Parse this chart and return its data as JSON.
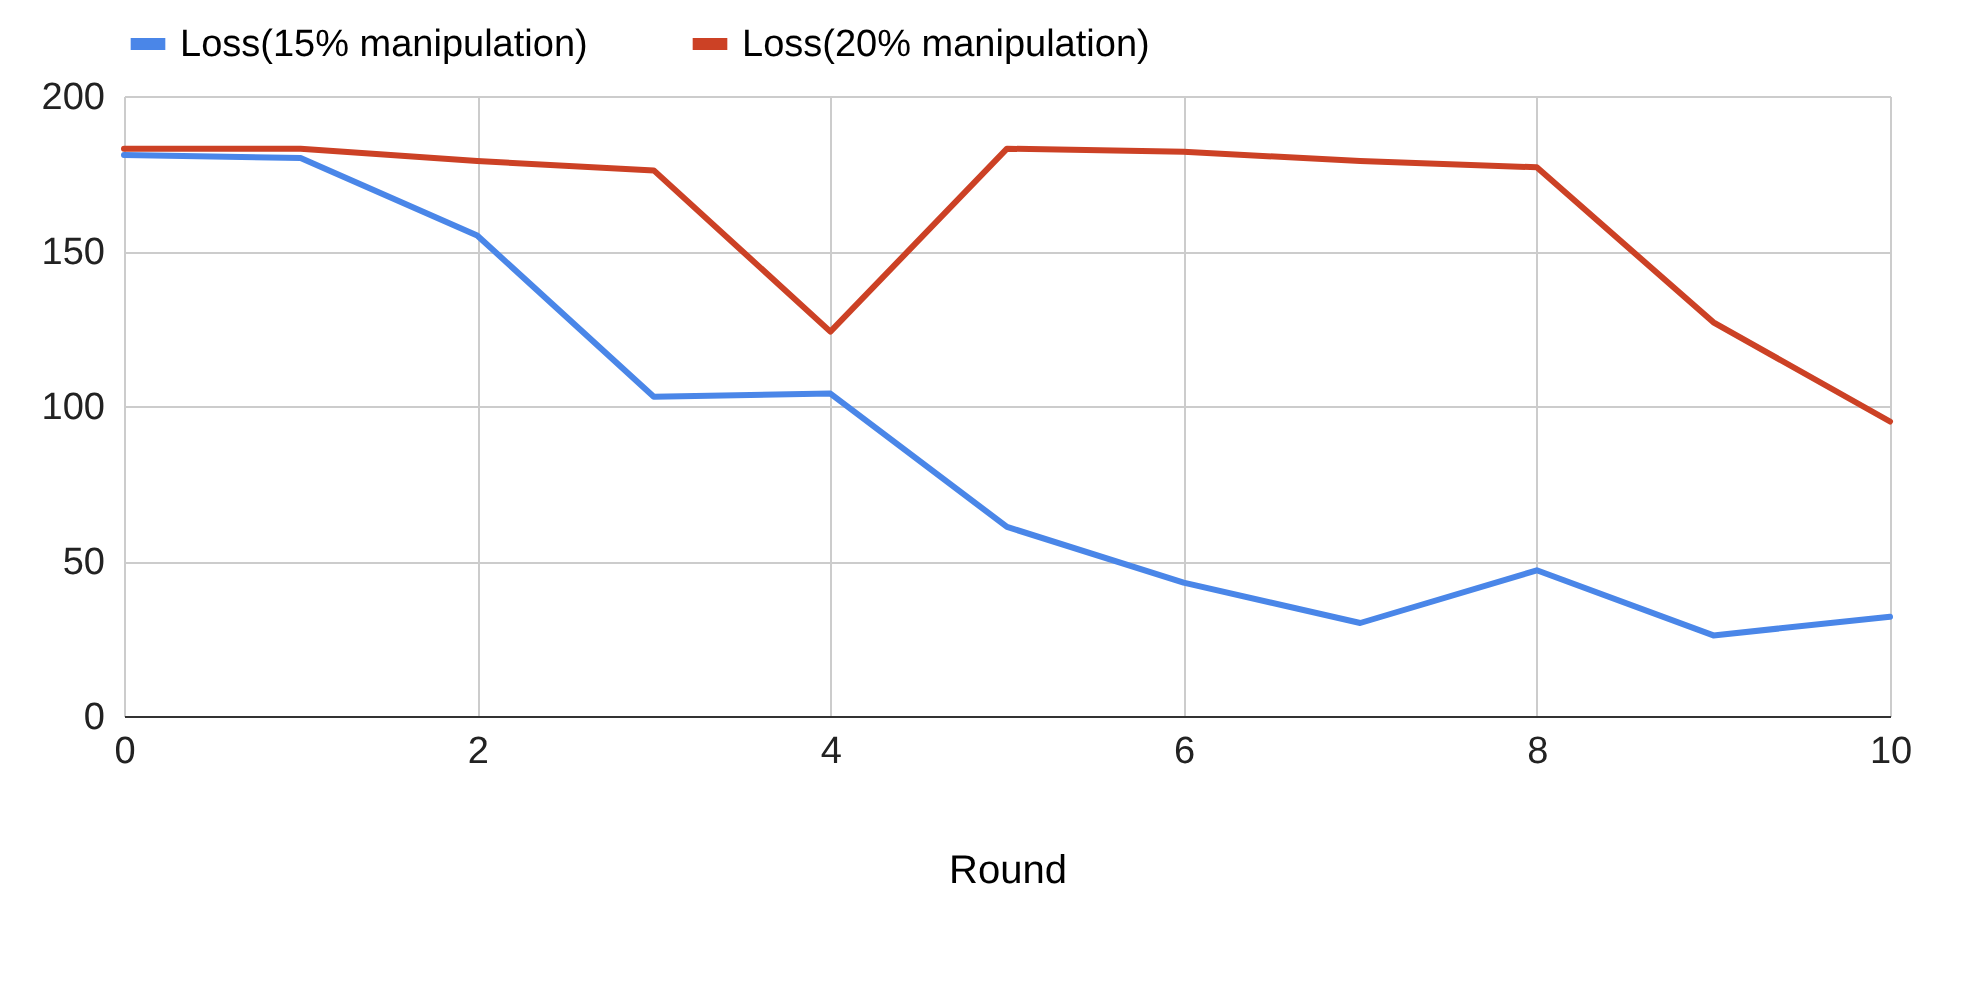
{
  "chart_data": {
    "type": "line",
    "xlabel": "Round",
    "x": [
      0,
      1,
      2,
      3,
      4,
      5,
      6,
      7,
      8,
      9,
      10
    ],
    "series": [
      {
        "name": "Loss(15% manipulation)",
        "color": "#4a86e8",
        "values": [
          181,
          180,
          155,
          103,
          104,
          61,
          43,
          30,
          47,
          26,
          32
        ]
      },
      {
        "name": "Loss(20% manipulation)",
        "color": "#cc4125",
        "values": [
          183,
          183,
          179,
          176,
          124,
          183,
          182,
          179,
          177,
          127,
          95
        ]
      }
    ],
    "xlim": [
      0,
      10
    ],
    "xticks": [
      0,
      2,
      4,
      6,
      8,
      10
    ],
    "ylim": [
      0,
      200
    ],
    "yticks": [
      0,
      50,
      100,
      150,
      200
    ],
    "grid": true,
    "legend": "top",
    "marker": "none",
    "line_style": "solid"
  }
}
